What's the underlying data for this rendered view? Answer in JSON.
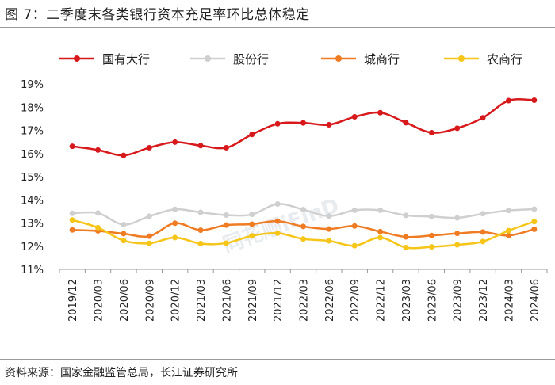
{
  "figure": {
    "title": "图 7：二季度末各类银行资本充足率环比总体稳定",
    "source": "资料来源：国家金融监管总局，长江证券研究所",
    "watermark": "同花顺iFinD"
  },
  "chart_data": {
    "type": "line",
    "title": "",
    "xlabel": "",
    "ylabel": "",
    "ylim": [
      11,
      19
    ],
    "yticks": [
      "11%",
      "12%",
      "13%",
      "14%",
      "15%",
      "16%",
      "17%",
      "18%",
      "19%"
    ],
    "legend_position": "top",
    "categories": [
      "2019/12",
      "2020/03",
      "2020/06",
      "2020/09",
      "2020/12",
      "2021/03",
      "2021/06",
      "2021/09",
      "2021/12",
      "2022/03",
      "2022/06",
      "2022/09",
      "2022/12",
      "2023/03",
      "2023/06",
      "2023/09",
      "2023/12",
      "2024/03",
      "2024/06"
    ],
    "series": [
      {
        "name": "国有大行",
        "color": "#d7191c",
        "values": [
          16.31,
          16.15,
          15.92,
          16.25,
          16.49,
          16.34,
          16.25,
          16.82,
          17.28,
          17.32,
          17.24,
          17.58,
          17.76,
          17.33,
          16.9,
          17.09,
          17.54,
          18.28,
          18.3
        ]
      },
      {
        "name": "股份行",
        "color": "#cfcfcf",
        "values": [
          13.42,
          13.43,
          12.93,
          13.29,
          13.59,
          13.46,
          13.34,
          13.37,
          13.82,
          13.58,
          13.3,
          13.55,
          13.55,
          13.33,
          13.28,
          13.22,
          13.4,
          13.54,
          13.6
        ]
      },
      {
        "name": "城商行",
        "color": "#ef7b22",
        "values": [
          12.7,
          12.66,
          12.54,
          12.43,
          12.99,
          12.69,
          12.91,
          12.95,
          13.08,
          12.85,
          12.74,
          12.87,
          12.63,
          12.4,
          12.46,
          12.55,
          12.61,
          12.46,
          12.73
        ]
      },
      {
        "name": "农商行",
        "color": "#f5c518",
        "values": [
          13.13,
          12.8,
          12.24,
          12.12,
          12.37,
          12.11,
          12.13,
          12.45,
          12.56,
          12.31,
          12.23,
          12.02,
          12.37,
          11.94,
          11.97,
          12.06,
          12.2,
          12.67,
          13.06
        ]
      }
    ]
  }
}
